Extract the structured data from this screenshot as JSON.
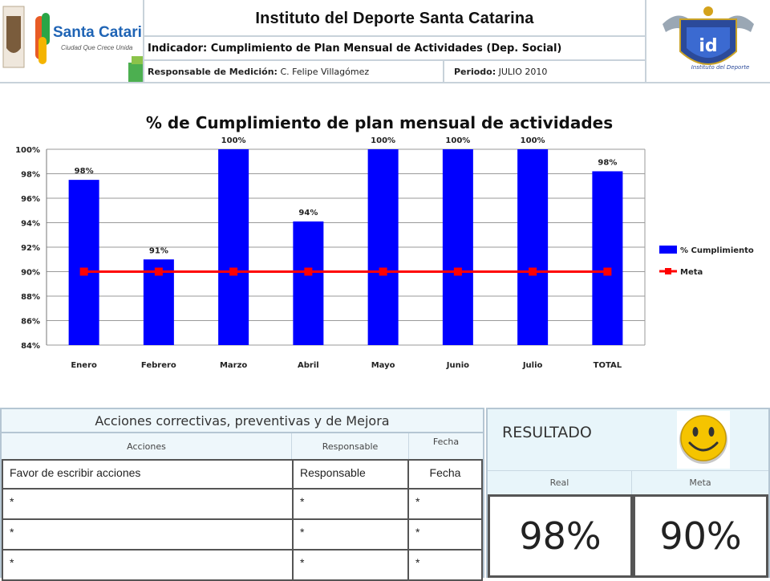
{
  "header": {
    "title": "Instituto del Deporte Santa Catarina",
    "indicator": "Indicador: Cumplimiento de Plan Mensual de Actividades (Dep. Social)",
    "responsable_label": "Responsable de Medición:",
    "responsable_name": "C. Felipe Villagómez",
    "periodo_label": "Periodo:",
    "periodo_value": "JULIO 2010",
    "logo_left_text": "Santa Catarina",
    "logo_left_tagline": "Ciudad Que Crece Unida",
    "logo_right_text": "id",
    "logo_right_caption": "Instituto del Deporte"
  },
  "chart_data": {
    "type": "bar",
    "title": "% de Cumplimiento de plan mensual de actividades",
    "categories": [
      "Enero",
      "Febrero",
      "Marzo",
      "Abril",
      "Mayo",
      "Junio",
      "Julio",
      "TOTAL"
    ],
    "series": [
      {
        "name": "% Cumplimiento",
        "type": "bar",
        "values": [
          97.5,
          91,
          100,
          94.1,
          100,
          100,
          100,
          98.2
        ],
        "labels": [
          "98%",
          "91%",
          "100%",
          "94%",
          "100%",
          "100%",
          "100%",
          "98%"
        ],
        "color": "#0000ff"
      },
      {
        "name": "Meta",
        "type": "line",
        "values": [
          90,
          90,
          90,
          90,
          90,
          90,
          90,
          90
        ],
        "color": "#ff0000"
      }
    ],
    "ylim": [
      84,
      100
    ],
    "yticks": [
      "84%",
      "86%",
      "88%",
      "90%",
      "92%",
      "94%",
      "96%",
      "98%",
      "100%"
    ],
    "grid": true,
    "legend_position": "right"
  },
  "actions": {
    "title": "Acciones correctivas, preventivas y de Mejora",
    "headers": {
      "acciones": "Acciones",
      "responsable": "Responsable",
      "fecha": "Fecha"
    },
    "rows": [
      [
        "Favor de escribir acciones",
        "Responsable",
        "Fecha"
      ],
      [
        "*",
        "*",
        "*"
      ],
      [
        "*",
        "*",
        "*"
      ],
      [
        "*",
        "*",
        "*"
      ]
    ]
  },
  "result": {
    "label": "RESULTADO",
    "real_label": "Real",
    "meta_label": "Meta",
    "real_value": "98%",
    "meta_value": "90%",
    "status_icon": "smiley-icon"
  }
}
